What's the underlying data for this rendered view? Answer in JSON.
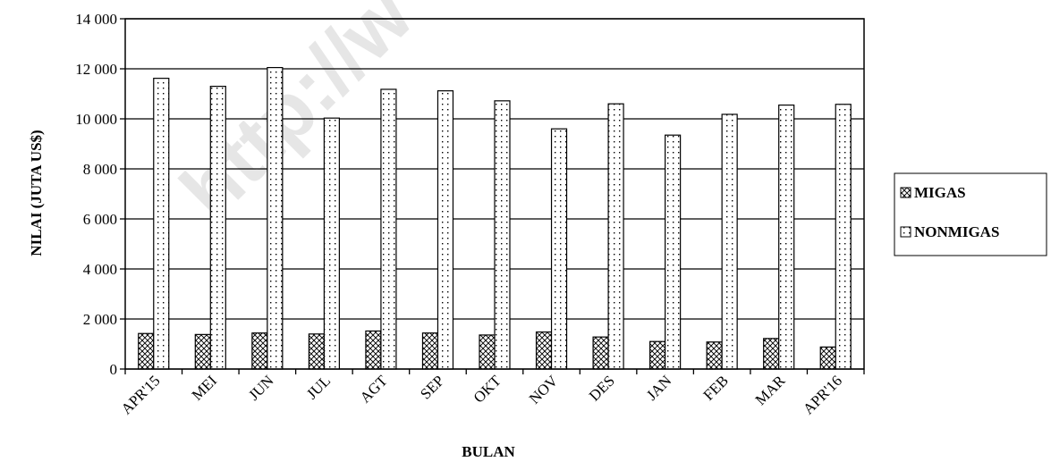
{
  "chart_data": {
    "type": "bar",
    "categories": [
      "APR'15",
      "MEI",
      "JUN",
      "JUL",
      "AGT",
      "SEP",
      "OKT",
      "NOV",
      "DES",
      "JAN",
      "FEB",
      "MAR",
      "APR'16"
    ],
    "series": [
      {
        "name": "MIGAS",
        "values": [
          1420,
          1380,
          1440,
          1400,
          1520,
          1440,
          1360,
          1480,
          1280,
          1100,
          1080,
          1220,
          880
        ]
      },
      {
        "name": "NONMIGAS",
        "values": [
          11620,
          11300,
          12050,
          10030,
          11180,
          11120,
          10720,
          9600,
          10600,
          9350,
          10180,
          10550,
          10580
        ]
      }
    ],
    "xlabel": "BULAN",
    "ylabel": "NILAI (JUTA US$)",
    "ylim": [
      0,
      14000
    ],
    "yticks": [
      {
        "value": 0,
        "label": "0"
      },
      {
        "value": 2000,
        "label": "2 000"
      },
      {
        "value": 4000,
        "label": "4 000"
      },
      {
        "value": 6000,
        "label": "6 000"
      },
      {
        "value": 8000,
        "label": "8 000"
      },
      {
        "value": 10000,
        "label": "10 000"
      },
      {
        "value": 12000,
        "label": "12 000"
      },
      {
        "value": 14000,
        "label": "14 000"
      }
    ],
    "grid": true,
    "legend_position": "right",
    "colors": {
      "fill": "#ffffff",
      "stroke": "#000000",
      "pattern": "#000000"
    }
  },
  "watermark": {
    "text": "http://w"
  }
}
